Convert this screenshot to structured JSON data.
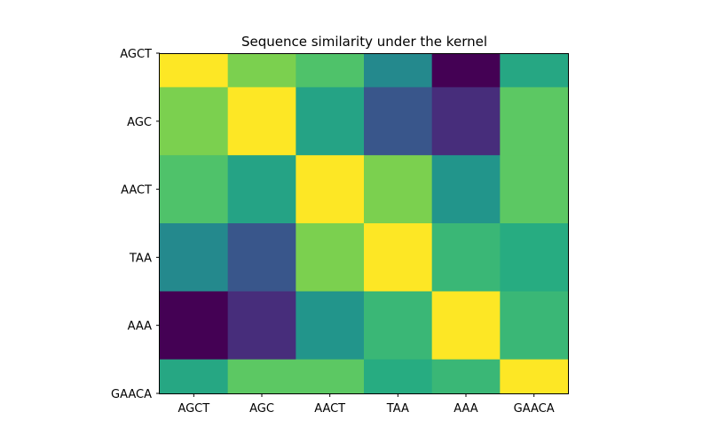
{
  "chart_data": {
    "type": "heatmap",
    "title": "Sequence similarity under the kernel",
    "xlabel": "",
    "ylabel": "",
    "x_categories": [
      "AGCT",
      "AGC",
      "AACT",
      "TAA",
      "AAA",
      "GAACA"
    ],
    "y_categories": [
      "AGCT",
      "AGC",
      "AACT",
      "TAA",
      "AAA",
      "GAACA"
    ],
    "colormap": "viridis",
    "value_range": [
      0,
      1
    ],
    "colorbar": false,
    "row_heights_in_category_units": [
      0.5,
      1,
      1,
      1,
      1,
      0.5
    ],
    "values": [
      [
        1.0,
        0.8,
        0.72,
        0.47,
        0.0,
        0.6
      ],
      [
        0.8,
        1.0,
        0.58,
        0.27,
        0.13,
        0.75
      ],
      [
        0.72,
        0.58,
        1.0,
        0.8,
        0.52,
        0.75
      ],
      [
        0.47,
        0.27,
        0.8,
        1.0,
        0.67,
        0.62
      ],
      [
        0.0,
        0.13,
        0.52,
        0.67,
        1.0,
        0.67
      ],
      [
        0.6,
        0.75,
        0.75,
        0.62,
        0.67,
        1.0
      ]
    ]
  },
  "colors": {
    "axis": "#000000",
    "background": "#ffffff"
  }
}
